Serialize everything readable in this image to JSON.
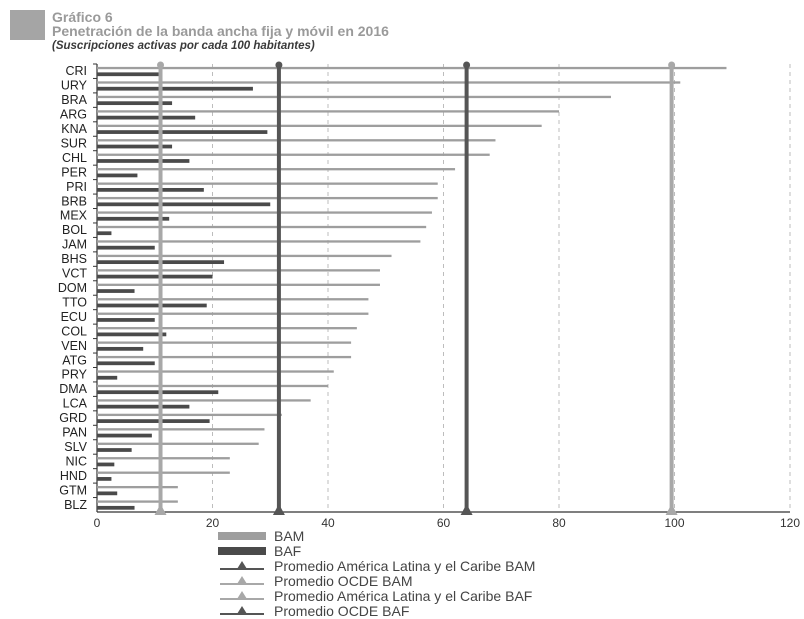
{
  "header": {
    "label": "Gráfico 6",
    "title": "Penetración de la banda ancha fija y móvil en 2016",
    "subtitle": "(Suscripciones activas por cada 100 habitantes)"
  },
  "chart_data": {
    "type": "bar",
    "orientation": "horizontal",
    "categories": [
      "CRI",
      "URY",
      "BRA",
      "ARG",
      "KNA",
      "SUR",
      "CHL",
      "PER",
      "PRI",
      "BRB",
      "MEX",
      "BOL",
      "JAM",
      "BHS",
      "VCT",
      "DOM",
      "TTO",
      "ECU",
      "COL",
      "VEN",
      "ATG",
      "PRY",
      "DMA",
      "LCA",
      "GRD",
      "PAN",
      "SLV",
      "NIC",
      "HND",
      "GTM",
      "BLZ"
    ],
    "series": [
      {
        "name": "BAM",
        "color": "#9e9e9e",
        "values": [
          109,
          101,
          89,
          80,
          77,
          69,
          68,
          62,
          59,
          59,
          58,
          57,
          56,
          51,
          49,
          49,
          47,
          47,
          45,
          44,
          44,
          41,
          40,
          37,
          32,
          29,
          28,
          23,
          23,
          14,
          14
        ]
      },
      {
        "name": "BAF",
        "color": "#4a4a4a",
        "values": [
          11,
          27,
          13,
          17,
          29.5,
          13,
          16,
          7,
          18.5,
          30,
          12.5,
          2.5,
          10,
          22,
          20,
          6.5,
          19,
          10,
          12,
          8,
          10,
          3.5,
          21,
          16,
          19.5,
          9.5,
          6,
          3,
          2.5,
          3.5,
          6.5
        ]
      }
    ],
    "reference_lines": [
      {
        "name": "Promedio América Latina y el Caribe BAM",
        "value": 64,
        "color": "#555555"
      },
      {
        "name": "Promedio OCDE BAM",
        "value": 99.5,
        "color": "#a8a8a8"
      },
      {
        "name": "Promedio América Latina y el Caribe BAF",
        "value": 11,
        "color": "#a8a8a8"
      },
      {
        "name": "Promedio OCDE BAF",
        "value": 31.5,
        "color": "#555555"
      }
    ],
    "xlim": [
      0,
      120
    ],
    "xticks": [
      0,
      20,
      40,
      60,
      80,
      100,
      120
    ],
    "grid": "vertical dashed",
    "legend_position": "bottom"
  },
  "legend": {
    "items": [
      {
        "label": "BAM",
        "kind": "bar",
        "color": "#9e9e9e"
      },
      {
        "label": "BAF",
        "kind": "bar",
        "color": "#4a4a4a"
      },
      {
        "label": "Promedio América Latina y el Caribe BAM",
        "kind": "line",
        "color": "#555555"
      },
      {
        "label": "Promedio OCDE BAM",
        "kind": "line",
        "color": "#a8a8a8"
      },
      {
        "label": "Promedio América Latina y el Caribe BAF",
        "kind": "line",
        "color": "#a8a8a8"
      },
      {
        "label": "Promedio OCDE BAF",
        "kind": "line",
        "color": "#555555"
      }
    ]
  }
}
